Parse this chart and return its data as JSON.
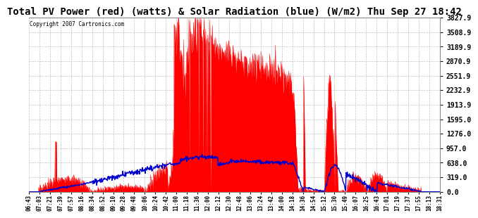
{
  "title": "Total PV Power (red) (watts) & Solar Radiation (blue) (W/m2) Thu Sep 27 18:42",
  "copyright": "Copyright 2007 Cartronics.com",
  "title_fontsize": 10,
  "bg_color": "#ffffff",
  "plot_bg_color": "#ffffff",
  "grid_color": "#bbbbbb",
  "yticks": [
    0.0,
    319.0,
    638.0,
    957.0,
    1276.0,
    1595.0,
    1913.9,
    2232.9,
    2551.9,
    2870.9,
    3189.9,
    3508.9,
    3827.9
  ],
  "ymax": 3827.9,
  "ymin": 0.0,
  "red_color": "#ff0000",
  "blue_color": "#0000cd",
  "x_labels": [
    "06:43",
    "07:03",
    "07:21",
    "07:39",
    "07:57",
    "08:16",
    "08:34",
    "08:52",
    "09:10",
    "09:28",
    "09:48",
    "10:06",
    "10:24",
    "10:42",
    "11:00",
    "11:18",
    "11:36",
    "12:00",
    "12:12",
    "12:30",
    "12:48",
    "13:06",
    "13:24",
    "13:42",
    "14:00",
    "14:18",
    "14:36",
    "14:54",
    "15:12",
    "15:30",
    "15:49",
    "16:07",
    "16:25",
    "16:43",
    "17:01",
    "17:19",
    "17:37",
    "17:55",
    "18:13",
    "18:31"
  ]
}
